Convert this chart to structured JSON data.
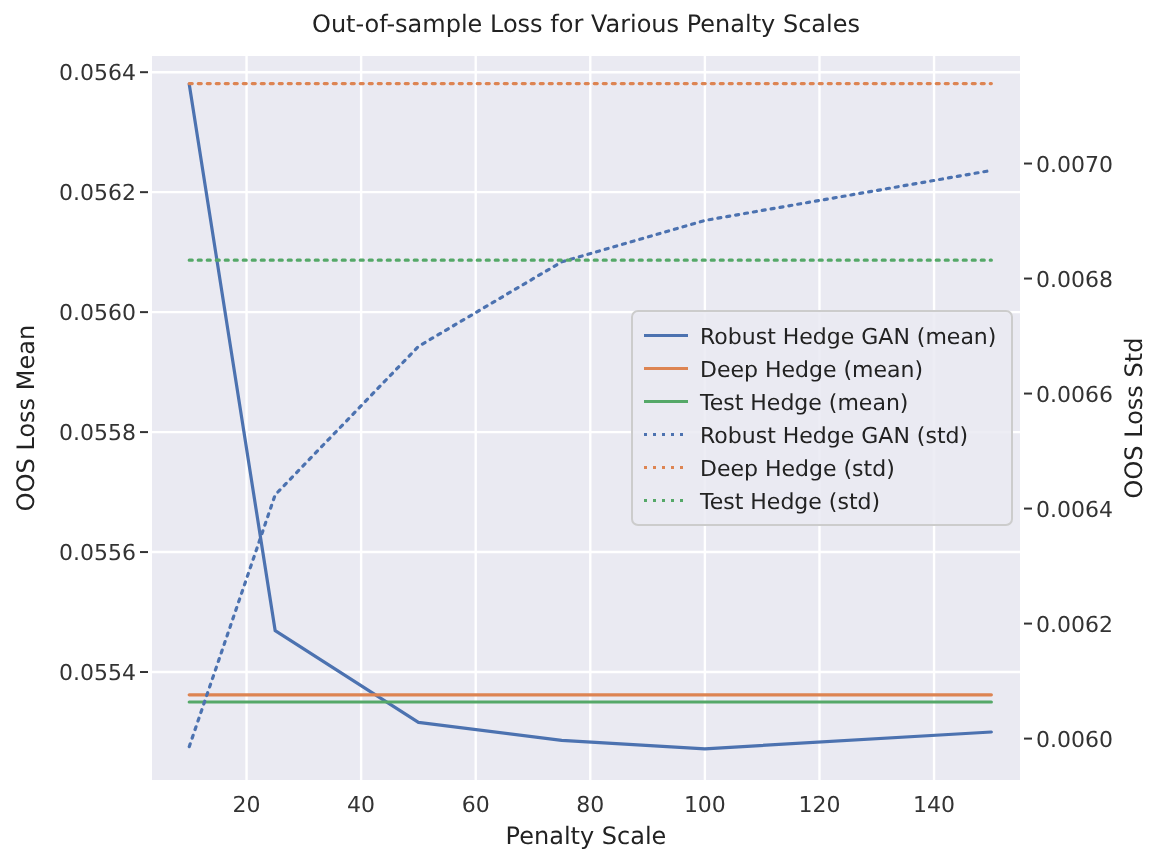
{
  "chart_data": {
    "type": "line",
    "title": "Out-of-sample Loss for Various Penalty Scales",
    "xlabel": "Penalty Scale",
    "ylabel": "OOS Loss Mean",
    "y2label": "OOS Loss Std",
    "x": [
      10,
      25,
      50,
      75,
      100,
      150
    ],
    "series": [
      {
        "name": "Robust Hedge GAN (mean)",
        "color": "#4c72b0",
        "values": [
          0.05638,
          0.055469,
          0.055316,
          0.055286,
          0.055272,
          0.0553
        ],
        "line_style": "solid"
      },
      {
        "name": "Deep Hedge (mean)",
        "color": "#dd8452",
        "values": [
          0.055362,
          0.055362,
          0.055362,
          0.055362,
          0.055362,
          0.055362
        ],
        "line_style": "solid"
      },
      {
        "name": "Test Hedge (mean)",
        "color": "#55a868",
        "values": [
          0.05535,
          0.05535,
          0.05535,
          0.05535,
          0.05535,
          0.05535
        ],
        "line_style": "solid"
      },
      {
        "name": "Robust Hedge GAN (std)",
        "color": "#4c72b0",
        "values": [
          0.005986,
          0.006424,
          0.006682,
          0.006829,
          0.006901,
          0.006988
        ],
        "line_style": "dotted",
        "axis": "y2"
      },
      {
        "name": "Deep Hedge (std)",
        "color": "#dd8452",
        "values": [
          0.007139,
          0.007139,
          0.007139,
          0.007139,
          0.007139,
          0.007139
        ],
        "line_style": "dotted",
        "axis": "y2"
      },
      {
        "name": "Test Hedge (std)",
        "color": "#55a868",
        "values": [
          0.006832,
          0.006832,
          0.006832,
          0.006832,
          0.006832,
          0.006832
        ],
        "line_style": "dotted",
        "axis": "y2"
      }
    ],
    "xlim": [
      3.5,
      155
    ],
    "xticks": [
      20,
      40,
      60,
      80,
      100,
      120,
      140
    ],
    "ylim": [
      0.05522,
      0.056427
    ],
    "yticks": [
      {
        "value": 0.0554,
        "label": "0.0554"
      },
      {
        "value": 0.0556,
        "label": "0.0556"
      },
      {
        "value": 0.0558,
        "label": "0.0558"
      },
      {
        "value": 0.056,
        "label": "0.0560"
      },
      {
        "value": 0.0562,
        "label": "0.0562"
      },
      {
        "value": 0.0564,
        "label": "0.0564"
      }
    ],
    "y2lim": [
      0.005928,
      0.007187
    ],
    "y2ticks": [
      {
        "value": 0.006,
        "label": "0.0060"
      },
      {
        "value": 0.0062,
        "label": "0.0062"
      },
      {
        "value": 0.0064,
        "label": "0.0064"
      },
      {
        "value": 0.0066,
        "label": "0.0066"
      },
      {
        "value": 0.0068,
        "label": "0.0068"
      },
      {
        "value": 0.007,
        "label": "0.0070"
      }
    ],
    "grid": true,
    "legend": "center right"
  }
}
